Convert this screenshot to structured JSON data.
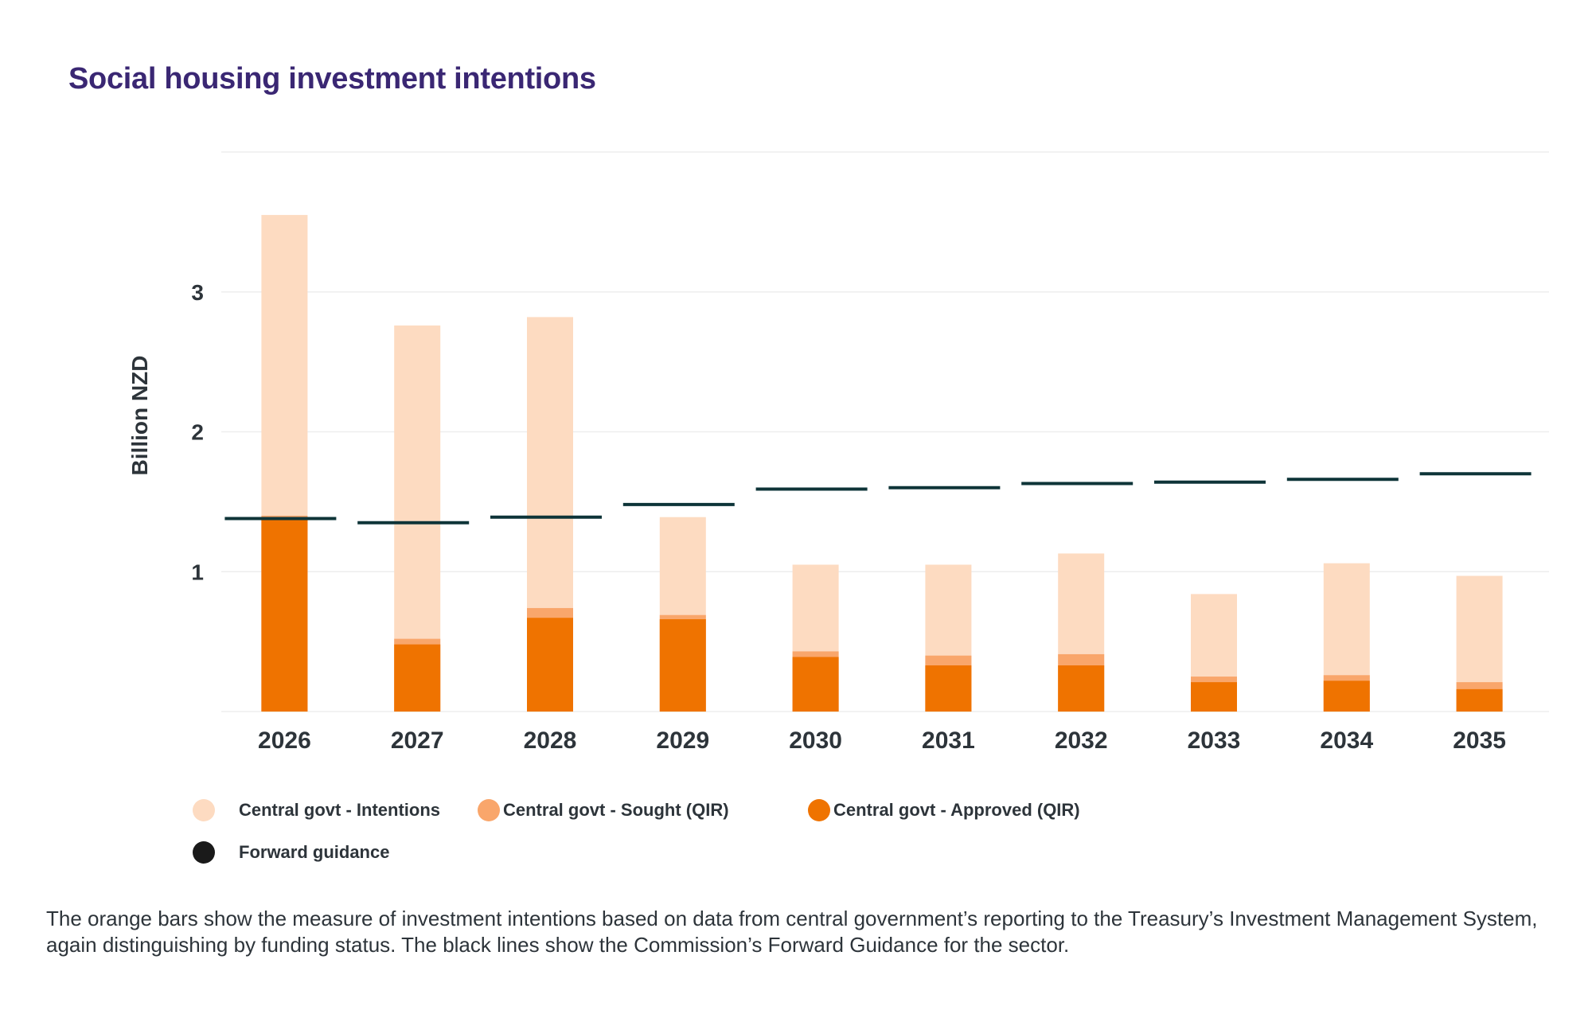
{
  "chart_data": {
    "type": "bar",
    "title": "Social housing investment intentions",
    "xlabel": "",
    "ylabel": "Billion NZD",
    "ylim": [
      0,
      4
    ],
    "yticks": [
      1,
      2,
      3
    ],
    "grid": true,
    "stacked": false,
    "categories": [
      "2026",
      "2027",
      "2028",
      "2029",
      "2030",
      "2031",
      "2032",
      "2033",
      "2034",
      "2035"
    ],
    "series": [
      {
        "name": "Central govt - Intentions",
        "type": "bar",
        "color": "#fddbc1",
        "values": [
          3.55,
          2.76,
          2.82,
          1.39,
          1.05,
          1.05,
          1.13,
          0.84,
          1.06,
          0.97
        ]
      },
      {
        "name": "Central govt - Sought (QIR)",
        "type": "bar",
        "color": "#f9a66b",
        "values": [
          1.4,
          0.52,
          0.74,
          0.69,
          0.43,
          0.4,
          0.41,
          0.25,
          0.26,
          0.21
        ]
      },
      {
        "name": "Central govt - Approved (QIR)",
        "type": "bar",
        "color": "#ef7300",
        "values": [
          1.39,
          0.48,
          0.67,
          0.66,
          0.39,
          0.33,
          0.33,
          0.21,
          0.22,
          0.16
        ]
      },
      {
        "name": "Forward guidance",
        "type": "marker-line",
        "color": "#0e3438",
        "values": [
          1.38,
          1.35,
          1.39,
          1.48,
          1.59,
          1.6,
          1.63,
          1.64,
          1.66,
          1.7
        ]
      }
    ],
    "legend": "bottom-left"
  },
  "legend": {
    "items": [
      {
        "label": "Central govt - Intentions",
        "color": "#fddbc1"
      },
      {
        "label": "Central govt - Sought (QIR)",
        "color": "#f9a66b"
      },
      {
        "label": "Central govt - Approved (QIR)",
        "color": "#ef7300"
      },
      {
        "label": "Forward guidance",
        "color": "#1a1a1a"
      }
    ]
  },
  "caption": "The orange bars show the measure of investment intentions based on data from central government’s reporting to the Treasury’s Investment Management System, again distinguishing by funding status. The black lines show the Commission’s Forward Guidance for the sector.",
  "colors": {
    "title": "#3a2773",
    "gridline": "#eeeeee"
  }
}
